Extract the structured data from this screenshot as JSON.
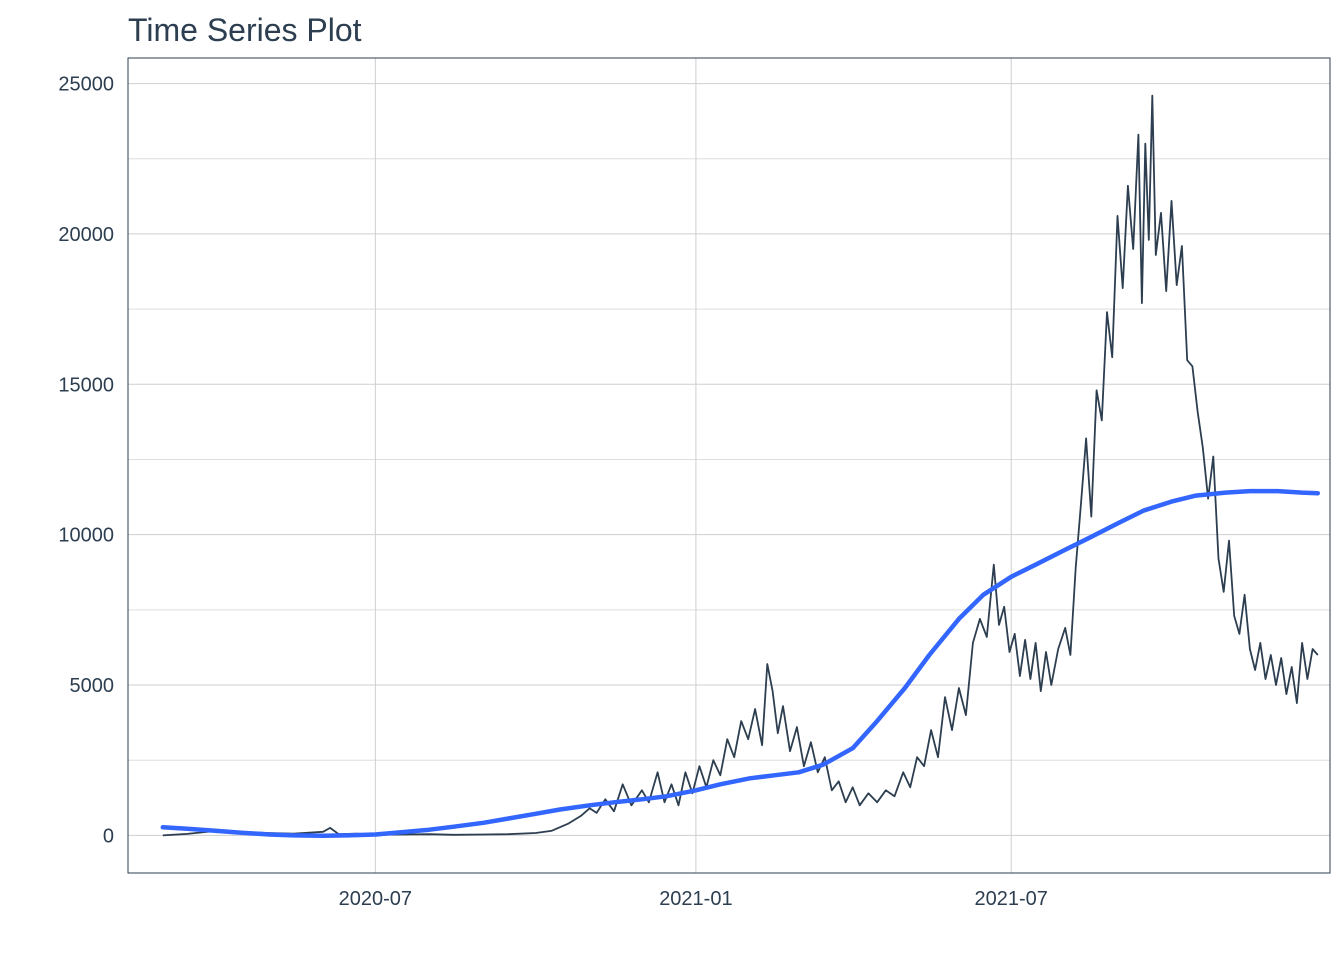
{
  "chart_data": {
    "type": "line",
    "title": "Time Series Plot",
    "xlabel": "",
    "ylabel": "",
    "x_ticks": [
      "2020-07",
      "2021-01",
      "2021-07"
    ],
    "y_ticks": [
      0,
      5000,
      10000,
      15000,
      20000,
      25000
    ],
    "xlim": [
      "2020-02-10",
      "2021-12-31"
    ],
    "ylim": [
      -1250,
      25850
    ],
    "grid": true,
    "legend": "none",
    "series": [
      {
        "style": "raw",
        "color": "#2c3e50",
        "points": [
          [
            "2020-03-01",
            0
          ],
          [
            "2020-03-15",
            50
          ],
          [
            "2020-04-01",
            150
          ],
          [
            "2020-04-15",
            120
          ],
          [
            "2020-05-01",
            80
          ],
          [
            "2020-05-15",
            60
          ],
          [
            "2020-06-01",
            120
          ],
          [
            "2020-06-05",
            250
          ],
          [
            "2020-06-10",
            40
          ],
          [
            "2020-06-20",
            60
          ],
          [
            "2020-07-01",
            20
          ],
          [
            "2020-07-15",
            30
          ],
          [
            "2020-08-01",
            40
          ],
          [
            "2020-08-15",
            20
          ],
          [
            "2020-09-01",
            30
          ],
          [
            "2020-09-15",
            40
          ],
          [
            "2020-10-01",
            80
          ],
          [
            "2020-10-10",
            150
          ],
          [
            "2020-10-20",
            400
          ],
          [
            "2020-10-27",
            650
          ],
          [
            "2020-11-01",
            900
          ],
          [
            "2020-11-05",
            750
          ],
          [
            "2020-11-10",
            1200
          ],
          [
            "2020-11-15",
            800
          ],
          [
            "2020-11-20",
            1700
          ],
          [
            "2020-11-25",
            1000
          ],
          [
            "2020-12-01",
            1500
          ],
          [
            "2020-12-05",
            1100
          ],
          [
            "2020-12-10",
            2100
          ],
          [
            "2020-12-14",
            1100
          ],
          [
            "2020-12-18",
            1700
          ],
          [
            "2020-12-22",
            1000
          ],
          [
            "2020-12-26",
            2100
          ],
          [
            "2020-12-30",
            1400
          ],
          [
            "2021-01-03",
            2300
          ],
          [
            "2021-01-07",
            1600
          ],
          [
            "2021-01-11",
            2500
          ],
          [
            "2021-01-15",
            2000
          ],
          [
            "2021-01-19",
            3200
          ],
          [
            "2021-01-23",
            2600
          ],
          [
            "2021-01-27",
            3800
          ],
          [
            "2021-01-31",
            3200
          ],
          [
            "2021-02-04",
            4200
          ],
          [
            "2021-02-08",
            3000
          ],
          [
            "2021-02-11",
            5700
          ],
          [
            "2021-02-14",
            4800
          ],
          [
            "2021-02-17",
            3400
          ],
          [
            "2021-02-20",
            4300
          ],
          [
            "2021-02-24",
            2800
          ],
          [
            "2021-02-28",
            3600
          ],
          [
            "2021-03-04",
            2300
          ],
          [
            "2021-03-08",
            3100
          ],
          [
            "2021-03-12",
            2100
          ],
          [
            "2021-03-16",
            2600
          ],
          [
            "2021-03-20",
            1500
          ],
          [
            "2021-03-24",
            1800
          ],
          [
            "2021-03-28",
            1100
          ],
          [
            "2021-04-01",
            1600
          ],
          [
            "2021-04-05",
            1000
          ],
          [
            "2021-04-10",
            1400
          ],
          [
            "2021-04-15",
            1100
          ],
          [
            "2021-04-20",
            1500
          ],
          [
            "2021-04-25",
            1300
          ],
          [
            "2021-04-30",
            2100
          ],
          [
            "2021-05-04",
            1600
          ],
          [
            "2021-05-08",
            2600
          ],
          [
            "2021-05-12",
            2300
          ],
          [
            "2021-05-16",
            3500
          ],
          [
            "2021-05-20",
            2600
          ],
          [
            "2021-05-24",
            4600
          ],
          [
            "2021-05-28",
            3500
          ],
          [
            "2021-06-01",
            4900
          ],
          [
            "2021-06-05",
            4000
          ],
          [
            "2021-06-09",
            6400
          ],
          [
            "2021-06-13",
            7200
          ],
          [
            "2021-06-17",
            6600
          ],
          [
            "2021-06-21",
            9000
          ],
          [
            "2021-06-24",
            7000
          ],
          [
            "2021-06-27",
            7600
          ],
          [
            "2021-06-30",
            6100
          ],
          [
            "2021-07-03",
            6700
          ],
          [
            "2021-07-06",
            5300
          ],
          [
            "2021-07-09",
            6500
          ],
          [
            "2021-07-12",
            5200
          ],
          [
            "2021-07-15",
            6400
          ],
          [
            "2021-07-18",
            4800
          ],
          [
            "2021-07-21",
            6100
          ],
          [
            "2021-07-24",
            5000
          ],
          [
            "2021-07-28",
            6200
          ],
          [
            "2021-08-01",
            6900
          ],
          [
            "2021-08-04",
            6000
          ],
          [
            "2021-08-07",
            8900
          ],
          [
            "2021-08-10",
            11000
          ],
          [
            "2021-08-13",
            13200
          ],
          [
            "2021-08-16",
            10600
          ],
          [
            "2021-08-19",
            14800
          ],
          [
            "2021-08-22",
            13800
          ],
          [
            "2021-08-25",
            17400
          ],
          [
            "2021-08-28",
            15900
          ],
          [
            "2021-08-31",
            20600
          ],
          [
            "2021-09-03",
            18200
          ],
          [
            "2021-09-06",
            21600
          ],
          [
            "2021-09-09",
            19500
          ],
          [
            "2021-09-12",
            23300
          ],
          [
            "2021-09-14",
            17700
          ],
          [
            "2021-09-16",
            23000
          ],
          [
            "2021-09-18",
            19800
          ],
          [
            "2021-09-20",
            24600
          ],
          [
            "2021-09-22",
            19300
          ],
          [
            "2021-09-25",
            20700
          ],
          [
            "2021-09-28",
            18100
          ],
          [
            "2021-10-01",
            21100
          ],
          [
            "2021-10-04",
            18300
          ],
          [
            "2021-10-07",
            19600
          ],
          [
            "2021-10-10",
            15800
          ],
          [
            "2021-10-13",
            15600
          ],
          [
            "2021-10-16",
            14100
          ],
          [
            "2021-10-19",
            12900
          ],
          [
            "2021-10-22",
            11200
          ],
          [
            "2021-10-25",
            12600
          ],
          [
            "2021-10-28",
            9200
          ],
          [
            "2021-10-31",
            8100
          ],
          [
            "2021-11-03",
            9800
          ],
          [
            "2021-11-06",
            7300
          ],
          [
            "2021-11-09",
            6700
          ],
          [
            "2021-11-12",
            8000
          ],
          [
            "2021-11-15",
            6200
          ],
          [
            "2021-11-18",
            5500
          ],
          [
            "2021-11-21",
            6400
          ],
          [
            "2021-11-24",
            5200
          ],
          [
            "2021-11-27",
            6000
          ],
          [
            "2021-11-30",
            5000
          ],
          [
            "2021-12-03",
            5900
          ],
          [
            "2021-12-06",
            4700
          ],
          [
            "2021-12-09",
            5600
          ],
          [
            "2021-12-12",
            4400
          ],
          [
            "2021-12-15",
            6400
          ],
          [
            "2021-12-18",
            5200
          ],
          [
            "2021-12-21",
            6200
          ],
          [
            "2021-12-24",
            6000
          ]
        ]
      },
      {
        "style": "smooth",
        "color": "#3366ff",
        "points": [
          [
            "2020-03-01",
            270
          ],
          [
            "2020-03-15",
            220
          ],
          [
            "2020-04-01",
            150
          ],
          [
            "2020-04-15",
            90
          ],
          [
            "2020-05-01",
            30
          ],
          [
            "2020-05-15",
            0
          ],
          [
            "2020-06-01",
            -10
          ],
          [
            "2020-06-15",
            0
          ],
          [
            "2020-07-01",
            30
          ],
          [
            "2020-07-15",
            100
          ],
          [
            "2020-08-01",
            190
          ],
          [
            "2020-08-15",
            290
          ],
          [
            "2020-09-01",
            420
          ],
          [
            "2020-09-15",
            560
          ],
          [
            "2020-10-01",
            720
          ],
          [
            "2020-10-15",
            860
          ],
          [
            "2020-11-01",
            1000
          ],
          [
            "2020-11-15",
            1100
          ],
          [
            "2020-12-01",
            1200
          ],
          [
            "2020-12-15",
            1300
          ],
          [
            "2021-01-01",
            1500
          ],
          [
            "2021-01-15",
            1700
          ],
          [
            "2021-02-01",
            1900
          ],
          [
            "2021-02-15",
            2000
          ],
          [
            "2021-03-01",
            2100
          ],
          [
            "2021-03-15",
            2350
          ],
          [
            "2021-04-01",
            2900
          ],
          [
            "2021-04-15",
            3800
          ],
          [
            "2021-05-01",
            4900
          ],
          [
            "2021-05-15",
            6000
          ],
          [
            "2021-06-01",
            7200
          ],
          [
            "2021-06-15",
            8000
          ],
          [
            "2021-07-01",
            8600
          ],
          [
            "2021-07-15",
            9000
          ],
          [
            "2021-08-01",
            9500
          ],
          [
            "2021-08-15",
            9900
          ],
          [
            "2021-09-01",
            10400
          ],
          [
            "2021-09-15",
            10800
          ],
          [
            "2021-10-01",
            11100
          ],
          [
            "2021-10-15",
            11300
          ],
          [
            "2021-11-01",
            11400
          ],
          [
            "2021-11-15",
            11450
          ],
          [
            "2021-12-01",
            11450
          ],
          [
            "2021-12-15",
            11400
          ],
          [
            "2021-12-24",
            11380
          ]
        ]
      }
    ]
  }
}
